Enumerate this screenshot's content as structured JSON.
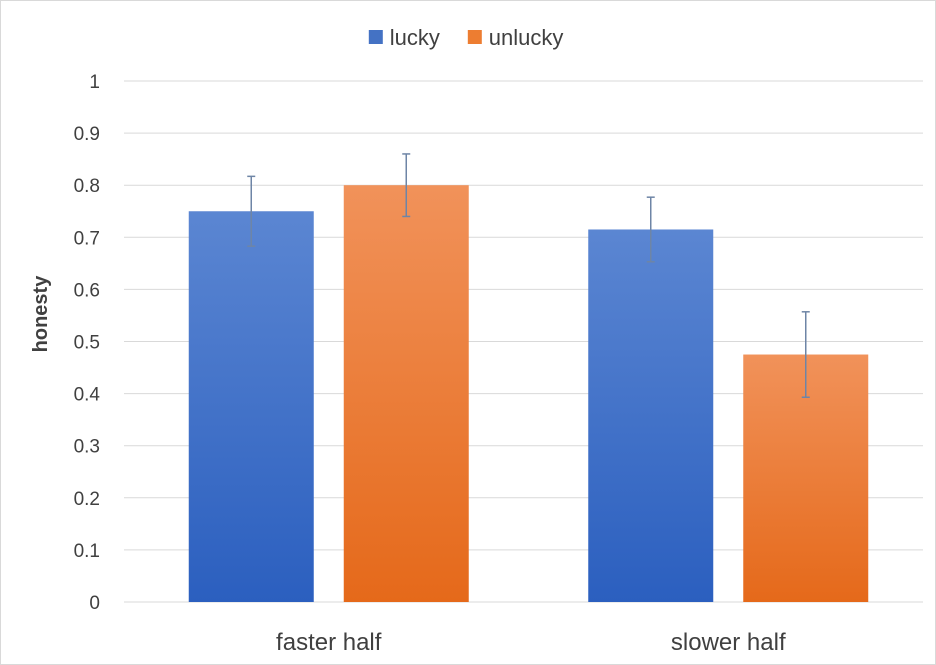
{
  "chart_data": {
    "type": "bar",
    "categories": [
      "faster half",
      "slower half"
    ],
    "series": [
      {
        "name": "lucky",
        "values": [
          0.75,
          0.715
        ],
        "error": [
          0.067,
          0.062
        ],
        "color_top": "#5b86d2",
        "color_bottom": "#2b5fbf",
        "legend_color": "#4472c4"
      },
      {
        "name": "unlucky",
        "values": [
          0.8,
          0.475
        ],
        "error": [
          0.06,
          0.082
        ],
        "color_top": "#f1925a",
        "color_bottom": "#e5691a",
        "legend_color": "#ed7d31"
      }
    ],
    "title": "",
    "xlabel": "",
    "ylabel": "honesty",
    "ylim": [
      0,
      1
    ],
    "yticks": [
      0,
      0.1,
      0.2,
      0.3,
      0.4,
      0.5,
      0.6,
      0.7,
      0.8,
      0.9,
      1
    ],
    "ytick_labels": [
      "0",
      "0.1",
      "0.2",
      "0.3",
      "0.4",
      "0.5",
      "0.6",
      "0.7",
      "0.8",
      "0.9",
      "1"
    ],
    "grid": true,
    "legend_position": "top-center",
    "gridline_color": "#d9d9d9",
    "errorbar_color": "#6e85a6"
  }
}
